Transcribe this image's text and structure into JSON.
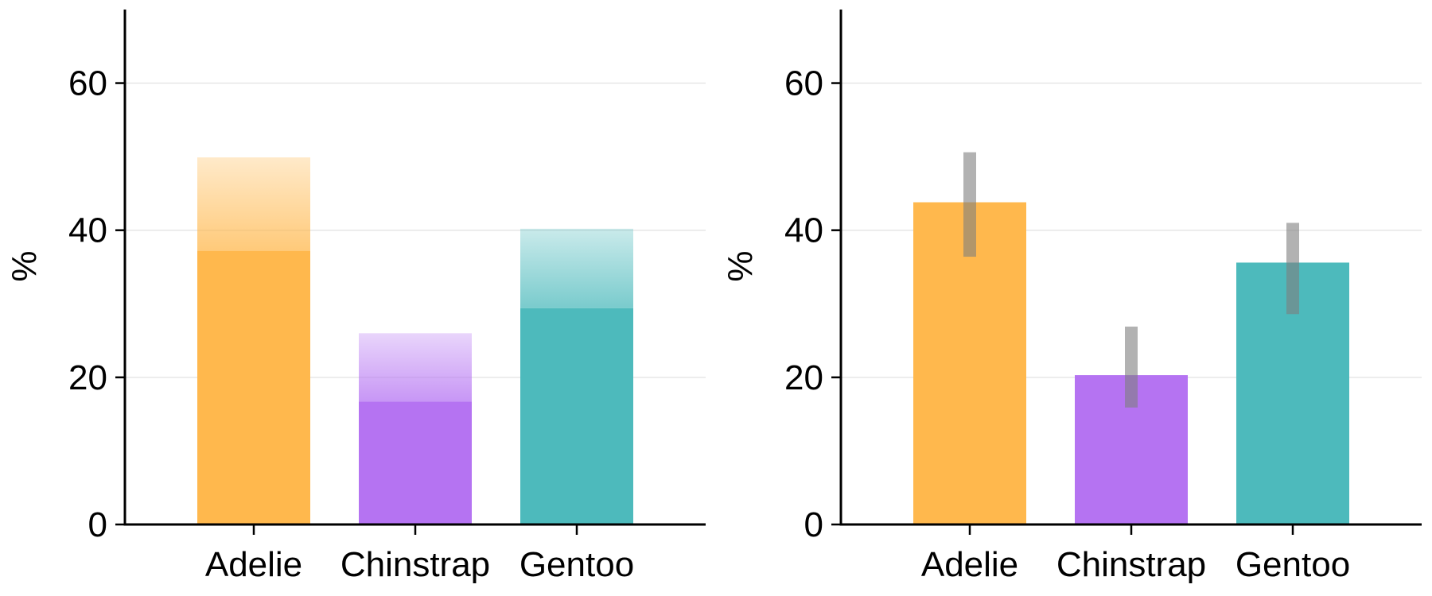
{
  "chart_data": [
    {
      "type": "bar",
      "variant": "stacked-gradient",
      "categories": [
        "Adelie",
        "Chinstrap",
        "Gentoo"
      ],
      "colors": [
        "#ffb84d",
        "#b573f2",
        "#4dbabc"
      ],
      "series": [
        {
          "values": [
            37.2,
            16.7,
            29.4
          ]
        },
        {
          "values": [
            49.9,
            26.0,
            40.2
          ]
        }
      ],
      "ylabel": "%",
      "ylim": [
        0,
        70
      ],
      "yticks": [
        "0",
        "20",
        "40",
        "60"
      ],
      "grid": "horizontal"
    },
    {
      "type": "bar",
      "variant": "error-bars",
      "categories": [
        "Adelie",
        "Chinstrap",
        "Gentoo"
      ],
      "colors": [
        "#ffb84d",
        "#b573f2",
        "#4dbabc"
      ],
      "values": [
        43.8,
        20.3,
        35.6
      ],
      "error_low": [
        36.4,
        15.9,
        28.6
      ],
      "error_high": [
        50.6,
        26.9,
        41.0
      ],
      "error_color": "#7f7f7f",
      "ylabel": "%",
      "ylim": [
        0,
        70
      ],
      "yticks": [
        "0",
        "20",
        "40",
        "60"
      ],
      "grid": "horizontal"
    }
  ]
}
